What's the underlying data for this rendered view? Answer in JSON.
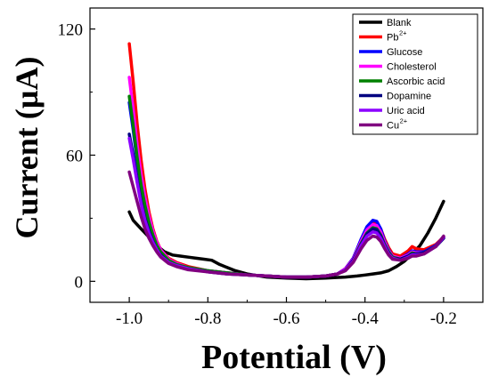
{
  "chart_data": {
    "type": "line",
    "title": "",
    "xlabel": "Potential (V)",
    "ylabel": "Current (µA)",
    "xlim": [
      -1.1,
      -0.1
    ],
    "ylim": [
      -10,
      130
    ],
    "xticks": [
      {
        "value": -1.0,
        "label": "-1.0"
      },
      {
        "value": -0.8,
        "label": "-0.8"
      },
      {
        "value": -0.6,
        "label": "-0.6"
      },
      {
        "value": -0.4,
        "label": "-0.4"
      },
      {
        "value": -0.2,
        "label": "-0.2"
      }
    ],
    "yticks": [
      {
        "value": 0,
        "label": "0"
      },
      {
        "value": 60,
        "label": "60"
      },
      {
        "value": 120,
        "label": "120"
      }
    ],
    "grid": false,
    "legend_position": "top-right",
    "series": [
      {
        "name": "Blank",
        "sup": "",
        "color": "#000000",
        "points": [
          [
            -1.0,
            33
          ],
          [
            -0.99,
            29
          ],
          [
            -0.97,
            25
          ],
          [
            -0.95,
            21
          ],
          [
            -0.93,
            17
          ],
          [
            -0.91,
            14
          ],
          [
            -0.89,
            12.5
          ],
          [
            -0.87,
            12
          ],
          [
            -0.85,
            11.5
          ],
          [
            -0.83,
            11
          ],
          [
            -0.81,
            10.5
          ],
          [
            -0.79,
            10
          ],
          [
            -0.77,
            8
          ],
          [
            -0.75,
            6.5
          ],
          [
            -0.73,
            5
          ],
          [
            -0.7,
            3.5
          ],
          [
            -0.65,
            2
          ],
          [
            -0.6,
            1.5
          ],
          [
            -0.55,
            1.2
          ],
          [
            -0.5,
            1.5
          ],
          [
            -0.45,
            2
          ],
          [
            -0.42,
            2.5
          ],
          [
            -0.4,
            3
          ],
          [
            -0.38,
            3.5
          ],
          [
            -0.36,
            4
          ],
          [
            -0.34,
            5
          ],
          [
            -0.32,
            7
          ],
          [
            -0.3,
            9.5
          ],
          [
            -0.28,
            13
          ],
          [
            -0.26,
            17
          ],
          [
            -0.24,
            23
          ],
          [
            -0.22,
            30
          ],
          [
            -0.2,
            38
          ]
        ]
      },
      {
        "name": "Pb",
        "sup": "2+",
        "color": "#ff0000",
        "points": [
          [
            -1.0,
            113
          ],
          [
            -0.99,
            95
          ],
          [
            -0.98,
            75
          ],
          [
            -0.97,
            58
          ],
          [
            -0.96,
            44
          ],
          [
            -0.95,
            33
          ],
          [
            -0.94,
            25
          ],
          [
            -0.93,
            19
          ],
          [
            -0.92,
            15
          ],
          [
            -0.9,
            11
          ],
          [
            -0.88,
            9
          ],
          [
            -0.85,
            7
          ],
          [
            -0.8,
            5
          ],
          [
            -0.75,
            4
          ],
          [
            -0.7,
            3
          ],
          [
            -0.65,
            2.5
          ],
          [
            -0.6,
            2
          ],
          [
            -0.55,
            2
          ],
          [
            -0.5,
            2.5
          ],
          [
            -0.47,
            3.5
          ],
          [
            -0.45,
            6
          ],
          [
            -0.43,
            11
          ],
          [
            -0.41,
            19
          ],
          [
            -0.395,
            25
          ],
          [
            -0.38,
            28
          ],
          [
            -0.37,
            27.5
          ],
          [
            -0.36,
            25
          ],
          [
            -0.35,
            20
          ],
          [
            -0.34,
            16
          ],
          [
            -0.33,
            13
          ],
          [
            -0.31,
            12
          ],
          [
            -0.29,
            14.5
          ],
          [
            -0.28,
            16.5
          ],
          [
            -0.27,
            15.5
          ],
          [
            -0.25,
            15
          ],
          [
            -0.22,
            17.5
          ],
          [
            -0.2,
            21
          ]
        ]
      },
      {
        "name": "Glucose",
        "sup": "",
        "color": "#0000ff",
        "points": [
          [
            -1.0,
            85
          ],
          [
            -0.99,
            72
          ],
          [
            -0.98,
            57
          ],
          [
            -0.97,
            45
          ],
          [
            -0.96,
            35
          ],
          [
            -0.95,
            28
          ],
          [
            -0.94,
            22
          ],
          [
            -0.93,
            17
          ],
          [
            -0.92,
            14
          ],
          [
            -0.9,
            10
          ],
          [
            -0.88,
            8
          ],
          [
            -0.85,
            6.5
          ],
          [
            -0.8,
            5
          ],
          [
            -0.75,
            4
          ],
          [
            -0.7,
            3
          ],
          [
            -0.65,
            2.5
          ],
          [
            -0.6,
            2
          ],
          [
            -0.55,
            2
          ],
          [
            -0.5,
            2.5
          ],
          [
            -0.47,
            3.5
          ],
          [
            -0.45,
            6
          ],
          [
            -0.43,
            11
          ],
          [
            -0.41,
            20
          ],
          [
            -0.395,
            26
          ],
          [
            -0.38,
            29
          ],
          [
            -0.37,
            28.5
          ],
          [
            -0.36,
            25
          ],
          [
            -0.35,
            19
          ],
          [
            -0.34,
            15
          ],
          [
            -0.33,
            12
          ],
          [
            -0.31,
            11
          ],
          [
            -0.29,
            13
          ],
          [
            -0.28,
            14.5
          ],
          [
            -0.27,
            14
          ],
          [
            -0.25,
            14
          ],
          [
            -0.22,
            17
          ],
          [
            -0.2,
            21
          ]
        ]
      },
      {
        "name": "Cholesterol",
        "sup": "",
        "color": "#ff00ff",
        "points": [
          [
            -1.0,
            97
          ],
          [
            -0.99,
            82
          ],
          [
            -0.98,
            65
          ],
          [
            -0.97,
            51
          ],
          [
            -0.96,
            40
          ],
          [
            -0.95,
            31
          ],
          [
            -0.94,
            24
          ],
          [
            -0.93,
            18.5
          ],
          [
            -0.92,
            15
          ],
          [
            -0.9,
            10.5
          ],
          [
            -0.88,
            8.5
          ],
          [
            -0.85,
            6.5
          ],
          [
            -0.8,
            5
          ],
          [
            -0.75,
            4
          ],
          [
            -0.7,
            3
          ],
          [
            -0.65,
            2.5
          ],
          [
            -0.6,
            2
          ],
          [
            -0.55,
            2
          ],
          [
            -0.5,
            2.5
          ],
          [
            -0.47,
            3.5
          ],
          [
            -0.45,
            6
          ],
          [
            -0.43,
            10.5
          ],
          [
            -0.41,
            19
          ],
          [
            -0.395,
            24.5
          ],
          [
            -0.38,
            27
          ],
          [
            -0.37,
            26.5
          ],
          [
            -0.36,
            23.5
          ],
          [
            -0.35,
            18.5
          ],
          [
            -0.34,
            14.5
          ],
          [
            -0.33,
            12
          ],
          [
            -0.31,
            11
          ],
          [
            -0.29,
            12.5
          ],
          [
            -0.28,
            14
          ],
          [
            -0.27,
            13.5
          ],
          [
            -0.25,
            13.5
          ],
          [
            -0.22,
            16.5
          ],
          [
            -0.2,
            20.5
          ]
        ]
      },
      {
        "name": "Ascorbic acid",
        "sup": "",
        "color": "#008000",
        "points": [
          [
            -1.0,
            88
          ],
          [
            -0.99,
            74
          ],
          [
            -0.98,
            59
          ],
          [
            -0.97,
            46
          ],
          [
            -0.96,
            36
          ],
          [
            -0.95,
            28
          ],
          [
            -0.94,
            22
          ],
          [
            -0.93,
            17
          ],
          [
            -0.92,
            14
          ],
          [
            -0.9,
            10
          ],
          [
            -0.88,
            8
          ],
          [
            -0.85,
            6.5
          ],
          [
            -0.8,
            5
          ],
          [
            -0.75,
            4
          ],
          [
            -0.7,
            3
          ],
          [
            -0.65,
            2.5
          ],
          [
            -0.6,
            2
          ],
          [
            -0.55,
            2
          ],
          [
            -0.5,
            2.5
          ],
          [
            -0.47,
            3.5
          ],
          [
            -0.45,
            5.5
          ],
          [
            -0.43,
            10
          ],
          [
            -0.41,
            18
          ],
          [
            -0.395,
            23
          ],
          [
            -0.38,
            25.5
          ],
          [
            -0.37,
            25
          ],
          [
            -0.36,
            22
          ],
          [
            -0.35,
            17.5
          ],
          [
            -0.34,
            14
          ],
          [
            -0.33,
            11.5
          ],
          [
            -0.31,
            10.5
          ],
          [
            -0.29,
            12
          ],
          [
            -0.28,
            13.5
          ],
          [
            -0.27,
            13
          ],
          [
            -0.25,
            13.5
          ],
          [
            -0.22,
            16.5
          ],
          [
            -0.2,
            20.5
          ]
        ]
      },
      {
        "name": "Dopamine",
        "sup": "",
        "color": "#000080",
        "points": [
          [
            -1.0,
            70
          ],
          [
            -0.99,
            60
          ],
          [
            -0.98,
            48
          ],
          [
            -0.97,
            38
          ],
          [
            -0.96,
            30
          ],
          [
            -0.95,
            24
          ],
          [
            -0.94,
            19
          ],
          [
            -0.93,
            15
          ],
          [
            -0.92,
            12.5
          ],
          [
            -0.9,
            9
          ],
          [
            -0.88,
            7.5
          ],
          [
            -0.85,
            6
          ],
          [
            -0.8,
            4.5
          ],
          [
            -0.75,
            3.5
          ],
          [
            -0.7,
            3
          ],
          [
            -0.65,
            2.5
          ],
          [
            -0.6,
            2
          ],
          [
            -0.55,
            2
          ],
          [
            -0.5,
            2.5
          ],
          [
            -0.47,
            3.5
          ],
          [
            -0.45,
            5.5
          ],
          [
            -0.43,
            10
          ],
          [
            -0.41,
            17.5
          ],
          [
            -0.395,
            22.5
          ],
          [
            -0.38,
            25
          ],
          [
            -0.37,
            24.5
          ],
          [
            -0.36,
            21.5
          ],
          [
            -0.35,
            17
          ],
          [
            -0.34,
            13.5
          ],
          [
            -0.33,
            11
          ],
          [
            -0.31,
            10.5
          ],
          [
            -0.29,
            12
          ],
          [
            -0.28,
            13
          ],
          [
            -0.27,
            13
          ],
          [
            -0.25,
            13.5
          ],
          [
            -0.22,
            16.5
          ],
          [
            -0.2,
            20.5
          ]
        ]
      },
      {
        "name": "Uric acid",
        "sup": "",
        "color": "#8b00ff",
        "points": [
          [
            -1.0,
            68
          ],
          [
            -0.99,
            58
          ],
          [
            -0.98,
            47
          ],
          [
            -0.97,
            37
          ],
          [
            -0.96,
            29
          ],
          [
            -0.95,
            23
          ],
          [
            -0.94,
            18.5
          ],
          [
            -0.93,
            15
          ],
          [
            -0.92,
            12
          ],
          [
            -0.9,
            9
          ],
          [
            -0.88,
            7.5
          ],
          [
            -0.85,
            6
          ],
          [
            -0.8,
            4.5
          ],
          [
            -0.75,
            3.5
          ],
          [
            -0.7,
            3
          ],
          [
            -0.65,
            2.5
          ],
          [
            -0.6,
            2
          ],
          [
            -0.55,
            2
          ],
          [
            -0.5,
            2.5
          ],
          [
            -0.47,
            3.5
          ],
          [
            -0.45,
            5.5
          ],
          [
            -0.43,
            9.5
          ],
          [
            -0.41,
            17
          ],
          [
            -0.395,
            21.5
          ],
          [
            -0.38,
            23.5
          ],
          [
            -0.37,
            23
          ],
          [
            -0.36,
            20.5
          ],
          [
            -0.35,
            16.5
          ],
          [
            -0.34,
            13
          ],
          [
            -0.33,
            11
          ],
          [
            -0.31,
            10
          ],
          [
            -0.29,
            11.5
          ],
          [
            -0.28,
            12.5
          ],
          [
            -0.27,
            12.5
          ],
          [
            -0.25,
            13
          ],
          [
            -0.22,
            16.5
          ],
          [
            -0.2,
            21
          ]
        ]
      },
      {
        "name": "Cu",
        "sup": "2+",
        "color": "#800080",
        "points": [
          [
            -1.0,
            52
          ],
          [
            -0.99,
            45
          ],
          [
            -0.98,
            38
          ],
          [
            -0.97,
            31
          ],
          [
            -0.96,
            25
          ],
          [
            -0.95,
            20.5
          ],
          [
            -0.94,
            17
          ],
          [
            -0.93,
            14
          ],
          [
            -0.92,
            11.5
          ],
          [
            -0.9,
            8.5
          ],
          [
            -0.88,
            7
          ],
          [
            -0.85,
            5.5
          ],
          [
            -0.8,
            4.5
          ],
          [
            -0.75,
            3.5
          ],
          [
            -0.7,
            3
          ],
          [
            -0.65,
            2.5
          ],
          [
            -0.6,
            2
          ],
          [
            -0.55,
            2
          ],
          [
            -0.5,
            2.5
          ],
          [
            -0.47,
            3.5
          ],
          [
            -0.45,
            5
          ],
          [
            -0.43,
            9
          ],
          [
            -0.41,
            15.5
          ],
          [
            -0.395,
            19.5
          ],
          [
            -0.38,
            21.5
          ],
          [
            -0.37,
            21
          ],
          [
            -0.36,
            19
          ],
          [
            -0.35,
            15.5
          ],
          [
            -0.34,
            12.5
          ],
          [
            -0.33,
            10.5
          ],
          [
            -0.31,
            10
          ],
          [
            -0.29,
            11
          ],
          [
            -0.28,
            12
          ],
          [
            -0.27,
            12
          ],
          [
            -0.25,
            13
          ],
          [
            -0.22,
            16.5
          ],
          [
            -0.2,
            21.5
          ]
        ]
      }
    ]
  }
}
